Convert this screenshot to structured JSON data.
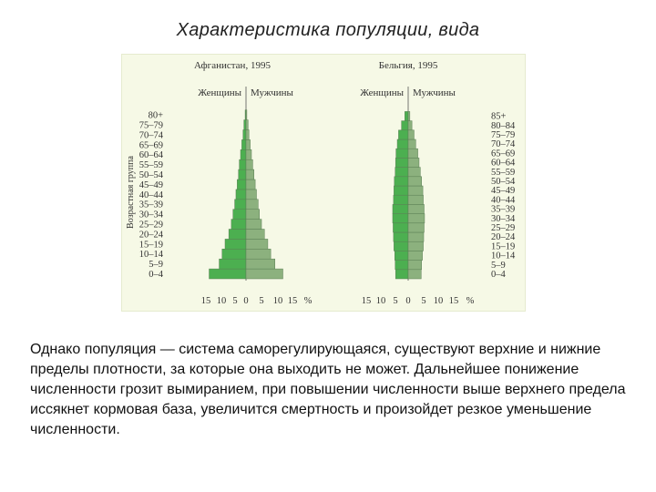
{
  "slide": {
    "title": "Характеристика популяции, вида",
    "paragraph": "Однако популяция — система саморегулирующаяся, существуют верхние и нижние пределы плотности, за которые она выходить не может. Дальнейшее понижение численности грозит вымиранием, при повышении численности выше верхнего предела иссякнет кормовая база, увеличится смертность и произойдет резкое уменьшение численности."
  },
  "colors": {
    "panel_bg": "#f6f9e6",
    "women_fill": "#4caf50",
    "men_fill": "#8cb17e",
    "edge": "#5b7f55"
  },
  "chart_data": [
    {
      "type": "bar",
      "subtype": "population-pyramid",
      "title": "Афганистан, 1995",
      "ylabel": "Возрастная группа",
      "xlabel": "%",
      "x_ticks": [
        "15",
        "10",
        "5",
        "0",
        "5",
        "10",
        "15",
        "%"
      ],
      "legend": [
        "Женщины",
        "Мужчины"
      ],
      "categories": [
        "0-4",
        "5-9",
        "10-14",
        "15-19",
        "20-24",
        "25-29",
        "30-34",
        "35-39",
        "40-44",
        "45-49",
        "50-54",
        "55-59",
        "60-64",
        "65-69",
        "70-74",
        "75-79",
        "80+"
      ],
      "category_labels": [
        "0–4",
        "5–9",
        "10–14",
        "15–19",
        "20–24",
        "25–29",
        "30–34",
        "35–39",
        "40–44",
        "45–49",
        "50–54",
        "55–59",
        "60–64",
        "65–69",
        "70–74",
        "75–79",
        "80+"
      ],
      "series": [
        {
          "name": "Женщины",
          "values": [
            8.8,
            6.4,
            5.7,
            5.0,
            4.1,
            3.5,
            3.1,
            2.7,
            2.4,
            2.1,
            1.8,
            1.6,
            1.3,
            1.0,
            0.7,
            0.5,
            0.2
          ]
        },
        {
          "name": "Мужчины",
          "values": [
            8.8,
            6.9,
            5.9,
            5.2,
            4.4,
            3.7,
            3.2,
            2.9,
            2.5,
            2.2,
            1.9,
            1.6,
            1.3,
            1.0,
            0.7,
            0.5,
            0.2
          ]
        }
      ],
      "xlim": [
        -15,
        15
      ]
    },
    {
      "type": "bar",
      "subtype": "population-pyramid",
      "title": "Бельгия, 1995",
      "xlabel": "%",
      "x_ticks": [
        "15",
        "10",
        "5",
        "0",
        "5",
        "10",
        "15",
        "%"
      ],
      "legend": [
        "Женщины",
        "Мужчины"
      ],
      "categories": [
        "0-4",
        "5-9",
        "10-14",
        "15-19",
        "20-24",
        "25-29",
        "30-34",
        "35-39",
        "40-44",
        "45-49",
        "50-54",
        "55-59",
        "60-64",
        "65-69",
        "70-74",
        "75-79",
        "80-84",
        "85+"
      ],
      "category_labels": [
        "0–4",
        "5–9",
        "10–14",
        "15–19",
        "20–24",
        "25–29",
        "30–34",
        "35–39",
        "40–44",
        "45–49",
        "50–54",
        "55–59",
        "60–64",
        "65–69",
        "70–74",
        "75–79",
        "80–84",
        "85+"
      ],
      "series": [
        {
          "name": "Женщины",
          "values": [
            3.0,
            3.1,
            3.2,
            3.4,
            3.5,
            3.6,
            3.7,
            3.7,
            3.5,
            3.4,
            3.3,
            3.1,
            3.0,
            2.9,
            2.6,
            2.3,
            1.6,
            0.8
          ]
        },
        {
          "name": "Мужчины",
          "values": [
            3.1,
            3.2,
            3.4,
            3.6,
            3.7,
            3.8,
            3.9,
            3.8,
            3.6,
            3.5,
            3.2,
            2.9,
            2.6,
            2.3,
            1.8,
            1.4,
            0.9,
            0.4
          ]
        }
      ],
      "xlim": [
        -15,
        15
      ]
    }
  ]
}
